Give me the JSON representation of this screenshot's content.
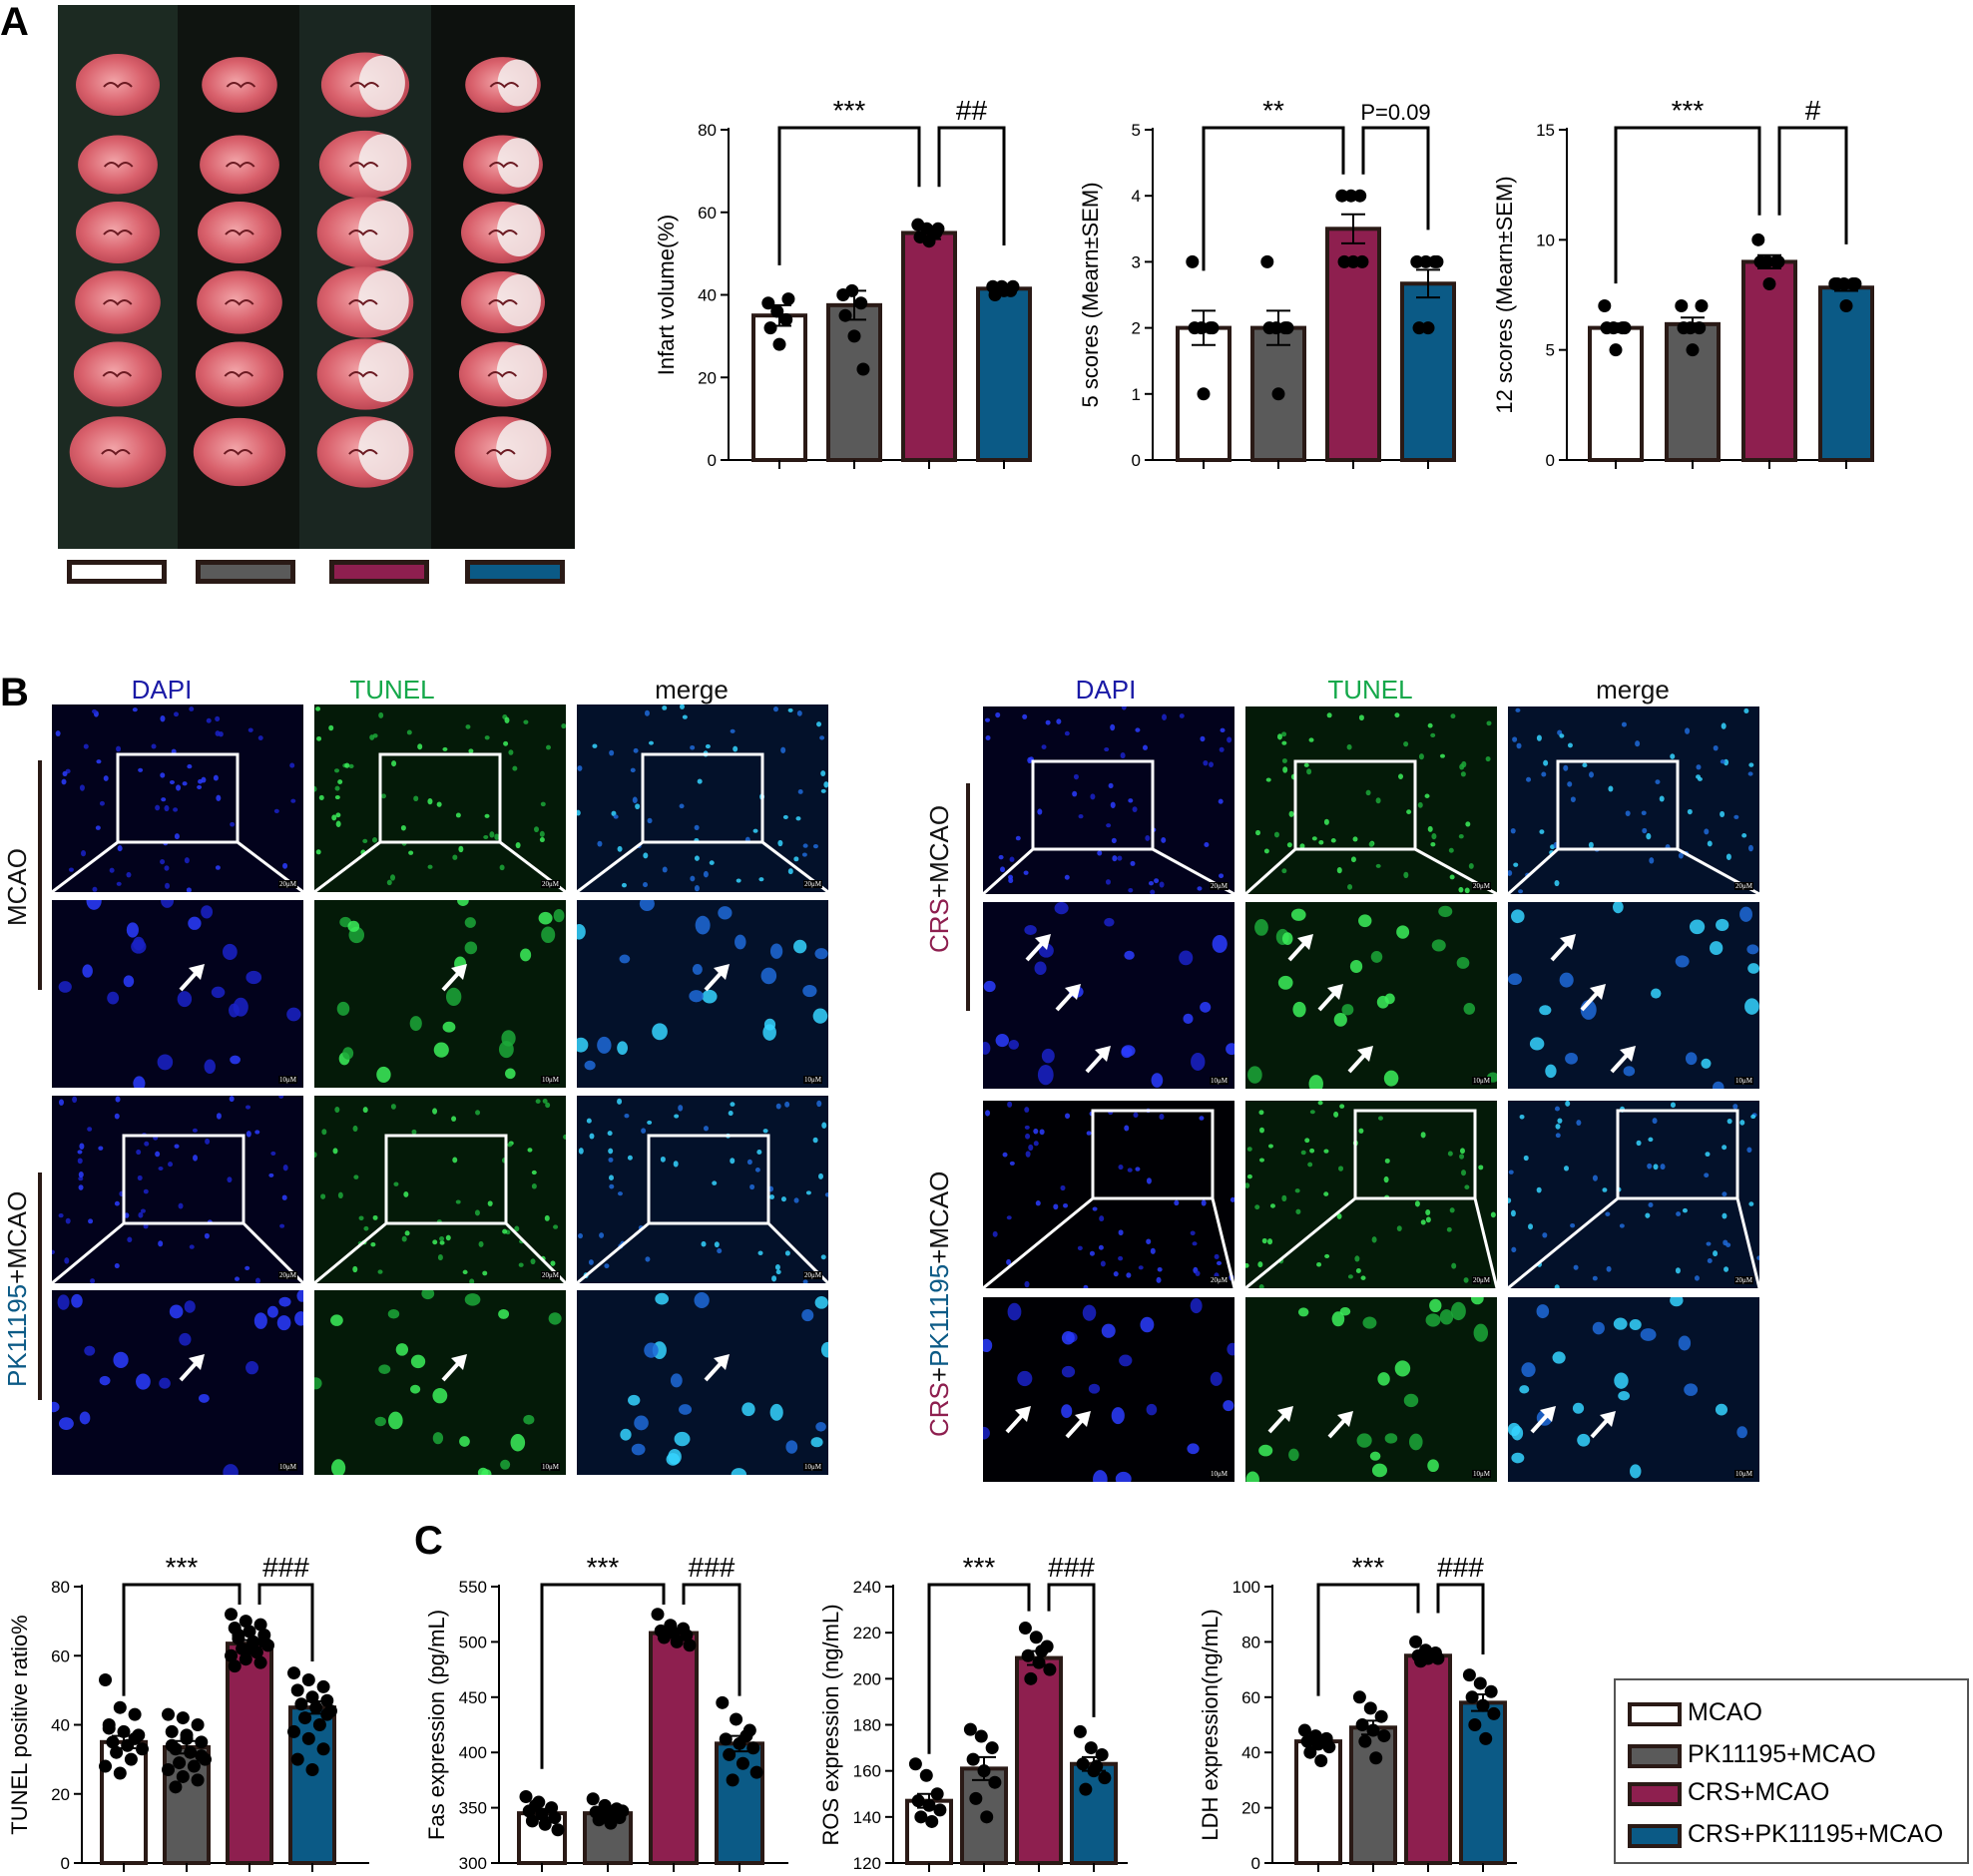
{
  "panels": {
    "A": "A",
    "B": "B",
    "C": "C"
  },
  "colors": {
    "MCAO": "#ffffff",
    "PK11195+MCAO": "#5a5a5a",
    "CRS+MCAO": "#8e1f4f",
    "CRS+PK11195+MCAO": "#0b5a86",
    "outline": "#2a1a16"
  },
  "legend": {
    "items": [
      "MCAO",
      "PK11195+MCAO",
      "CRS+MCAO",
      "CRS+PK11195+MCAO"
    ]
  },
  "panel_b": {
    "col_headers": [
      "DAPI",
      "TUNEL",
      "merge"
    ],
    "row_labels": {
      "mcao": "MCAO",
      "pk_prefix": "PK11195",
      "pk_suffix": "+MCAO",
      "crs_prefix": "CRS",
      "crs_suffix": "+MCAO",
      "crspk_a": "CRS",
      "crspk_b": "+",
      "crspk_c": "PK11195",
      "crspk_d": "+MCAO"
    },
    "scale_low": "20μM",
    "scale_high": "10μM"
  },
  "chart_data": [
    {
      "id": "infarct",
      "type": "bar",
      "categories": [
        "MCAO",
        "PK11195+MCAO",
        "CRS+MCAO",
        "CRS+PK11195+MCAO"
      ],
      "values": [
        35,
        37.5,
        55,
        41.5
      ],
      "errors": [
        2.5,
        3.5,
        1.5,
        0.8
      ],
      "points": [
        [
          38,
          36,
          34,
          32,
          28,
          39
        ],
        [
          40,
          41,
          38,
          35,
          30,
          22
        ],
        [
          57,
          56,
          55,
          54,
          53,
          56
        ],
        [
          42,
          42,
          41,
          40,
          41,
          42
        ]
      ],
      "ylabel": "Infart volume(%)",
      "ylim": [
        0,
        80
      ],
      "yticks": [
        0,
        20,
        40,
        60,
        80
      ],
      "sig": [
        {
          "label": "***",
          "from": 0,
          "to": 2
        },
        {
          "label": "##",
          "from": 2,
          "to": 3
        }
      ]
    },
    {
      "id": "score5",
      "type": "bar",
      "categories": [
        "MCAO",
        "PK11195+MCAO",
        "CRS+MCAO",
        "CRS+PK11195+MCAO"
      ],
      "values": [
        2,
        2,
        3.5,
        2.67
      ],
      "errors": [
        0.26,
        0.26,
        0.22,
        0.21
      ],
      "points": [
        [
          3,
          2,
          2,
          2,
          1,
          2
        ],
        [
          3,
          2,
          2,
          2,
          1,
          2
        ],
        [
          4,
          4,
          4,
          3,
          3,
          3
        ],
        [
          3,
          3,
          3,
          2,
          2,
          3
        ]
      ],
      "ylabel": "5 scores (Mearn±SEM)",
      "ylim": [
        0,
        5
      ],
      "yticks": [
        0,
        1,
        2,
        3,
        4,
        5
      ],
      "sig": [
        {
          "label": "**",
          "from": 0,
          "to": 2
        },
        {
          "label": "P=0.09",
          "from": 2,
          "to": 3
        }
      ]
    },
    {
      "id": "score12",
      "type": "bar",
      "categories": [
        "MCAO",
        "PK11195+MCAO",
        "CRS+MCAO",
        "CRS+PK11195+MCAO"
      ],
      "values": [
        6,
        6.17,
        9,
        7.83
      ],
      "errors": [
        0.2,
        0.3,
        0.3,
        0.15
      ],
      "points": [
        [
          7,
          6,
          6,
          6,
          5,
          6
        ],
        [
          7,
          6,
          6,
          6,
          5,
          7
        ],
        [
          10,
          9,
          9,
          9,
          8,
          9
        ],
        [
          8,
          8,
          8,
          8,
          7,
          8
        ]
      ],
      "ylabel": "12 scores (Mearn±SEM)",
      "ylim": [
        0,
        15
      ],
      "yticks": [
        0,
        5,
        10,
        15
      ],
      "sig": [
        {
          "label": "***",
          "from": 0,
          "to": 2
        },
        {
          "label": "#",
          "from": 2,
          "to": 3
        }
      ]
    },
    {
      "id": "tunel",
      "type": "bar",
      "categories": [
        "MCAO",
        "PK11195+MCAO",
        "CRS+MCAO",
        "CRS+PK11195+MCAO"
      ],
      "values": [
        35,
        33.5,
        63.5,
        45
      ],
      "errors": [
        1.8,
        1.8,
        1.0,
        1.8
      ],
      "points": [
        [
          53,
          45,
          43,
          40,
          38,
          37,
          35,
          34,
          33,
          32,
          30,
          28,
          26,
          36,
          39
        ],
        [
          43,
          42,
          40,
          38,
          36,
          35,
          33,
          32,
          30,
          29,
          28,
          27,
          25,
          24,
          34,
          37,
          31,
          22
        ],
        [
          72,
          70,
          69,
          68,
          67,
          66,
          65,
          64,
          63,
          62,
          61,
          60,
          59,
          58,
          57,
          62,
          64,
          66
        ],
        [
          55,
          53,
          51,
          50,
          48,
          47,
          46,
          45,
          44,
          42,
          40,
          38,
          36,
          33,
          30,
          27,
          43
        ]
      ],
      "ylabel": "TUNEL positive ratio%",
      "ylim": [
        0,
        80
      ],
      "yticks": [
        0,
        20,
        40,
        60,
        80
      ],
      "sig": [
        {
          "label": "***",
          "from": 0,
          "to": 2
        },
        {
          "label": "###",
          "from": 2,
          "to": 3
        }
      ]
    },
    {
      "id": "fas",
      "type": "bar",
      "categories": [
        "MCAO",
        "PK11195+MCAO",
        "CRS+MCAO",
        "CRS+PK11195+MCAO"
      ],
      "values": [
        345,
        345,
        508,
        408
      ],
      "errors": [
        4,
        3,
        3,
        7
      ],
      "points": [
        [
          360,
          355,
          350,
          347,
          344,
          341,
          338,
          335,
          330,
          352
        ],
        [
          358,
          352,
          349,
          346,
          344,
          341,
          339,
          336,
          347
        ],
        [
          525,
          515,
          512,
          510,
          508,
          506,
          504,
          500,
          497,
          509
        ],
        [
          445,
          430,
          420,
          412,
          408,
          404,
          398,
          390,
          382,
          375,
          415
        ]
      ],
      "ylabel": "Fas expression (pg/mL)",
      "ylim": [
        300,
        550
      ],
      "yticks": [
        300,
        350,
        400,
        450,
        500,
        550
      ],
      "sig": [
        {
          "label": "***",
          "from": 0,
          "to": 2
        },
        {
          "label": "###",
          "from": 2,
          "to": 3
        }
      ]
    },
    {
      "id": "ros",
      "type": "bar",
      "categories": [
        "MCAO",
        "PK11195+MCAO",
        "CRS+MCAO",
        "CRS+PK11195+MCAO"
      ],
      "values": [
        147,
        161,
        209,
        163
      ],
      "errors": [
        3,
        5,
        3,
        3
      ],
      "points": [
        [
          163,
          158,
          150,
          147,
          145,
          143,
          140,
          138
        ],
        [
          178,
          175,
          170,
          165,
          160,
          155,
          148,
          140
        ],
        [
          222,
          218,
          214,
          210,
          207,
          204,
          200,
          212
        ],
        [
          177,
          170,
          167,
          163,
          160,
          157,
          152,
          162
        ]
      ],
      "ylabel": "ROS expression  (ng/mL)",
      "ylim": [
        120,
        240
      ],
      "yticks": [
        120,
        140,
        160,
        180,
        200,
        220,
        240
      ],
      "sig": [
        {
          "label": "***",
          "from": 0,
          "to": 2
        },
        {
          "label": "###",
          "from": 2,
          "to": 3
        }
      ]
    },
    {
      "id": "ldh",
      "type": "bar",
      "categories": [
        "MCAO",
        "PK11195+MCAO",
        "CRS+MCAO",
        "CRS+PK11195+MCAO"
      ],
      "values": [
        44,
        49,
        75,
        58
      ],
      "errors": [
        2,
        2.5,
        1,
        3
      ],
      "points": [
        [
          48,
          46,
          45,
          44,
          43,
          42,
          40,
          37
        ],
        [
          60,
          56,
          53,
          50,
          48,
          46,
          44,
          38
        ],
        [
          80,
          77,
          76,
          75,
          74,
          74,
          73
        ],
        [
          68,
          65,
          62,
          60,
          57,
          54,
          50,
          45
        ]
      ],
      "ylabel": "LDH expression(ng/mL)",
      "ylim": [
        0,
        100
      ],
      "yticks": [
        0,
        20,
        40,
        60,
        80,
        100
      ],
      "sig": [
        {
          "label": "***",
          "from": 0,
          "to": 2
        },
        {
          "label": "###",
          "from": 2,
          "to": 3
        }
      ]
    }
  ]
}
